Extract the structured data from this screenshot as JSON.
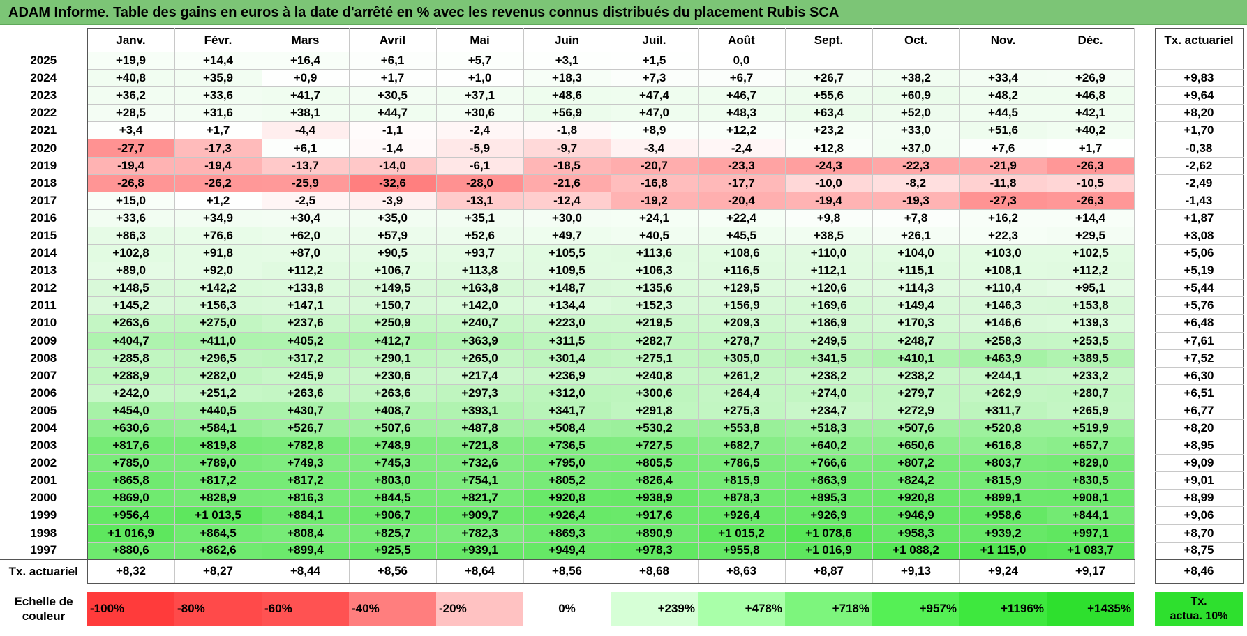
{
  "title": "ADAM Informe. Table des gains en euros à la date d'arrêté en % avec les revenus connus distribués du placement Rubis SCA",
  "chart_data": {
    "type": "table",
    "title": "ADAM Informe. Table des gains en euros à la date d'arrêté en % avec les revenus connus distribués du placement Rubis SCA",
    "columns": [
      "Janv.",
      "Févr.",
      "Mars",
      "Avril",
      "Mai",
      "Juin",
      "Juil.",
      "Août",
      "Sept.",
      "Oct.",
      "Nov.",
      "Déc."
    ],
    "tx_header": "Tx. actuariel",
    "rows": [
      {
        "year": "2025",
        "values": [
          "+19,9",
          "+14,4",
          "+16,4",
          "+6,1",
          "+5,7",
          "+3,1",
          "+1,5",
          "0,0",
          "",
          "",
          "",
          ""
        ],
        "nums": [
          19.9,
          14.4,
          16.4,
          6.1,
          5.7,
          3.1,
          1.5,
          0,
          null,
          null,
          null,
          null
        ],
        "tx": "",
        "txnum": null
      },
      {
        "year": "2024",
        "values": [
          "+40,8",
          "+35,9",
          "+0,9",
          "+1,7",
          "+1,0",
          "+18,3",
          "+7,3",
          "+6,7",
          "+26,7",
          "+38,2",
          "+33,4",
          "+26,9"
        ],
        "nums": [
          40.8,
          35.9,
          0.9,
          1.7,
          1.0,
          18.3,
          7.3,
          6.7,
          26.7,
          38.2,
          33.4,
          26.9
        ],
        "tx": "+9,83",
        "txnum": 9.83
      },
      {
        "year": "2023",
        "values": [
          "+36,2",
          "+33,6",
          "+41,7",
          "+30,5",
          "+37,1",
          "+48,6",
          "+47,4",
          "+46,7",
          "+55,6",
          "+60,9",
          "+48,2",
          "+46,8"
        ],
        "nums": [
          36.2,
          33.6,
          41.7,
          30.5,
          37.1,
          48.6,
          47.4,
          46.7,
          55.6,
          60.9,
          48.2,
          46.8
        ],
        "tx": "+9,64",
        "txnum": 9.64
      },
      {
        "year": "2022",
        "values": [
          "+28,5",
          "+31,6",
          "+38,1",
          "+44,7",
          "+30,6",
          "+56,9",
          "+47,0",
          "+48,3",
          "+63,4",
          "+52,0",
          "+44,5",
          "+42,1"
        ],
        "nums": [
          28.5,
          31.6,
          38.1,
          44.7,
          30.6,
          56.9,
          47.0,
          48.3,
          63.4,
          52.0,
          44.5,
          42.1
        ],
        "tx": "+8,20",
        "txnum": 8.2
      },
      {
        "year": "2021",
        "values": [
          "+3,4",
          "+1,7",
          "-4,4",
          "-1,1",
          "-2,4",
          "-1,8",
          "+8,9",
          "+12,2",
          "+23,2",
          "+33,0",
          "+51,6",
          "+40,2"
        ],
        "nums": [
          3.4,
          1.7,
          -4.4,
          -1.1,
          -2.4,
          -1.8,
          8.9,
          12.2,
          23.2,
          33.0,
          51.6,
          40.2
        ],
        "tx": "+1,70",
        "txnum": 1.7
      },
      {
        "year": "2020",
        "values": [
          "-27,7",
          "-17,3",
          "+6,1",
          "-1,4",
          "-5,9",
          "-9,7",
          "-3,4",
          "-2,4",
          "+12,8",
          "+37,0",
          "+7,6",
          "+1,7"
        ],
        "nums": [
          -27.7,
          -17.3,
          6.1,
          -1.4,
          -5.9,
          -9.7,
          -3.4,
          -2.4,
          12.8,
          37.0,
          7.6,
          1.7
        ],
        "tx": "-0,38",
        "txnum": -0.38
      },
      {
        "year": "2019",
        "values": [
          "-19,4",
          "-19,4",
          "-13,7",
          "-14,0",
          "-6,1",
          "-18,5",
          "-20,7",
          "-23,3",
          "-24,3",
          "-22,3",
          "-21,9",
          "-26,3"
        ],
        "nums": [
          -19.4,
          -19.4,
          -13.7,
          -14.0,
          -6.1,
          -18.5,
          -20.7,
          -23.3,
          -24.3,
          -22.3,
          -21.9,
          -26.3
        ],
        "tx": "-2,62",
        "txnum": -2.62
      },
      {
        "year": "2018",
        "values": [
          "-26,8",
          "-26,2",
          "-25,9",
          "-32,6",
          "-28,0",
          "-21,6",
          "-16,8",
          "-17,7",
          "-10,0",
          "-8,2",
          "-11,8",
          "-10,5"
        ],
        "nums": [
          -26.8,
          -26.2,
          -25.9,
          -32.6,
          -28.0,
          -21.6,
          -16.8,
          -17.7,
          -10.0,
          -8.2,
          -11.8,
          -10.5
        ],
        "tx": "-2,49",
        "txnum": -2.49
      },
      {
        "year": "2017",
        "values": [
          "+15,0",
          "+1,2",
          "-2,5",
          "-3,9",
          "-13,1",
          "-12,4",
          "-19,2",
          "-20,4",
          "-19,4",
          "-19,3",
          "-27,3",
          "-26,3"
        ],
        "nums": [
          15.0,
          1.2,
          -2.5,
          -3.9,
          -13.1,
          -12.4,
          -19.2,
          -20.4,
          -19.4,
          -19.3,
          -27.3,
          -26.3
        ],
        "tx": "-1,43",
        "txnum": -1.43
      },
      {
        "year": "2016",
        "values": [
          "+33,6",
          "+34,9",
          "+30,4",
          "+35,0",
          "+35,1",
          "+30,0",
          "+24,1",
          "+22,4",
          "+9,8",
          "+7,8",
          "+16,2",
          "+14,4"
        ],
        "nums": [
          33.6,
          34.9,
          30.4,
          35.0,
          35.1,
          30.0,
          24.1,
          22.4,
          9.8,
          7.8,
          16.2,
          14.4
        ],
        "tx": "+1,87",
        "txnum": 1.87
      },
      {
        "year": "2015",
        "values": [
          "+86,3",
          "+76,6",
          "+62,0",
          "+57,9",
          "+52,6",
          "+49,7",
          "+40,5",
          "+45,5",
          "+38,5",
          "+26,1",
          "+22,3",
          "+29,5"
        ],
        "nums": [
          86.3,
          76.6,
          62.0,
          57.9,
          52.6,
          49.7,
          40.5,
          45.5,
          38.5,
          26.1,
          22.3,
          29.5
        ],
        "tx": "+3,08",
        "txnum": 3.08
      },
      {
        "year": "2014",
        "values": [
          "+102,8",
          "+91,8",
          "+87,0",
          "+90,5",
          "+93,7",
          "+105,5",
          "+113,6",
          "+108,6",
          "+110,0",
          "+104,0",
          "+103,0",
          "+102,5"
        ],
        "nums": [
          102.8,
          91.8,
          87.0,
          90.5,
          93.7,
          105.5,
          113.6,
          108.6,
          110.0,
          104.0,
          103.0,
          102.5
        ],
        "tx": "+5,06",
        "txnum": 5.06
      },
      {
        "year": "2013",
        "values": [
          "+89,0",
          "+92,0",
          "+112,2",
          "+106,7",
          "+113,8",
          "+109,5",
          "+106,3",
          "+116,5",
          "+112,1",
          "+115,1",
          "+108,1",
          "+112,2"
        ],
        "nums": [
          89.0,
          92.0,
          112.2,
          106.7,
          113.8,
          109.5,
          106.3,
          116.5,
          112.1,
          115.1,
          108.1,
          112.2
        ],
        "tx": "+5,19",
        "txnum": 5.19
      },
      {
        "year": "2012",
        "values": [
          "+148,5",
          "+142,2",
          "+133,8",
          "+149,5",
          "+163,8",
          "+148,7",
          "+135,6",
          "+129,5",
          "+120,6",
          "+114,3",
          "+110,4",
          "+95,1"
        ],
        "nums": [
          148.5,
          142.2,
          133.8,
          149.5,
          163.8,
          148.7,
          135.6,
          129.5,
          120.6,
          114.3,
          110.4,
          95.1
        ],
        "tx": "+5,44",
        "txnum": 5.44
      },
      {
        "year": "2011",
        "values": [
          "+145,2",
          "+156,3",
          "+147,1",
          "+150,7",
          "+142,0",
          "+134,4",
          "+152,3",
          "+156,9",
          "+169,6",
          "+149,4",
          "+146,3",
          "+153,8"
        ],
        "nums": [
          145.2,
          156.3,
          147.1,
          150.7,
          142.0,
          134.4,
          152.3,
          156.9,
          169.6,
          149.4,
          146.3,
          153.8
        ],
        "tx": "+5,76",
        "txnum": 5.76
      },
      {
        "year": "2010",
        "values": [
          "+263,6",
          "+275,0",
          "+237,6",
          "+250,9",
          "+240,7",
          "+223,0",
          "+219,5",
          "+209,3",
          "+186,9",
          "+170,3",
          "+146,6",
          "+139,3"
        ],
        "nums": [
          263.6,
          275.0,
          237.6,
          250.9,
          240.7,
          223.0,
          219.5,
          209.3,
          186.9,
          170.3,
          146.6,
          139.3
        ],
        "tx": "+6,48",
        "txnum": 6.48
      },
      {
        "year": "2009",
        "values": [
          "+404,7",
          "+411,0",
          "+405,2",
          "+412,7",
          "+363,9",
          "+311,5",
          "+282,7",
          "+278,7",
          "+249,5",
          "+248,7",
          "+258,3",
          "+253,5"
        ],
        "nums": [
          404.7,
          411.0,
          405.2,
          412.7,
          363.9,
          311.5,
          282.7,
          278.7,
          249.5,
          248.7,
          258.3,
          253.5
        ],
        "tx": "+7,61",
        "txnum": 7.61
      },
      {
        "year": "2008",
        "values": [
          "+285,8",
          "+296,5",
          "+317,2",
          "+290,1",
          "+265,0",
          "+301,4",
          "+275,1",
          "+305,0",
          "+341,5",
          "+410,1",
          "+463,9",
          "+389,5"
        ],
        "nums": [
          285.8,
          296.5,
          317.2,
          290.1,
          265.0,
          301.4,
          275.1,
          305.0,
          341.5,
          410.1,
          463.9,
          389.5
        ],
        "tx": "+7,52",
        "txnum": 7.52
      },
      {
        "year": "2007",
        "values": [
          "+288,9",
          "+282,0",
          "+245,9",
          "+230,6",
          "+217,4",
          "+236,9",
          "+240,8",
          "+261,2",
          "+238,2",
          "+238,2",
          "+244,1",
          "+233,2"
        ],
        "nums": [
          288.9,
          282.0,
          245.9,
          230.6,
          217.4,
          236.9,
          240.8,
          261.2,
          238.2,
          238.2,
          244.1,
          233.2
        ],
        "tx": "+6,30",
        "txnum": 6.3
      },
      {
        "year": "2006",
        "values": [
          "+242,0",
          "+251,2",
          "+263,6",
          "+263,6",
          "+297,3",
          "+312,0",
          "+300,6",
          "+264,4",
          "+274,0",
          "+279,7",
          "+262,9",
          "+280,7"
        ],
        "nums": [
          242.0,
          251.2,
          263.6,
          263.6,
          297.3,
          312.0,
          300.6,
          264.4,
          274.0,
          279.7,
          262.9,
          280.7
        ],
        "tx": "+6,51",
        "txnum": 6.51
      },
      {
        "year": "2005",
        "values": [
          "+454,0",
          "+440,5",
          "+430,7",
          "+408,7",
          "+393,1",
          "+341,7",
          "+291,8",
          "+275,3",
          "+234,7",
          "+272,9",
          "+311,7",
          "+265,9"
        ],
        "nums": [
          454.0,
          440.5,
          430.7,
          408.7,
          393.1,
          341.7,
          291.8,
          275.3,
          234.7,
          272.9,
          311.7,
          265.9
        ],
        "tx": "+6,77",
        "txnum": 6.77
      },
      {
        "year": "2004",
        "values": [
          "+630,6",
          "+584,1",
          "+526,7",
          "+507,6",
          "+487,8",
          "+508,4",
          "+530,2",
          "+553,8",
          "+518,3",
          "+507,6",
          "+520,8",
          "+519,9"
        ],
        "nums": [
          630.6,
          584.1,
          526.7,
          507.6,
          487.8,
          508.4,
          530.2,
          553.8,
          518.3,
          507.6,
          520.8,
          519.9
        ],
        "tx": "+8,20",
        "txnum": 8.2
      },
      {
        "year": "2003",
        "values": [
          "+817,6",
          "+819,8",
          "+782,8",
          "+748,9",
          "+721,8",
          "+736,5",
          "+727,5",
          "+682,7",
          "+640,2",
          "+650,6",
          "+616,8",
          "+657,7"
        ],
        "nums": [
          817.6,
          819.8,
          782.8,
          748.9,
          721.8,
          736.5,
          727.5,
          682.7,
          640.2,
          650.6,
          616.8,
          657.7
        ],
        "tx": "+8,95",
        "txnum": 8.95
      },
      {
        "year": "2002",
        "values": [
          "+785,0",
          "+789,0",
          "+749,3",
          "+745,3",
          "+732,6",
          "+795,0",
          "+805,5",
          "+786,5",
          "+766,6",
          "+807,2",
          "+803,7",
          "+829,0"
        ],
        "nums": [
          785.0,
          789.0,
          749.3,
          745.3,
          732.6,
          795.0,
          805.5,
          786.5,
          766.6,
          807.2,
          803.7,
          829.0
        ],
        "tx": "+9,09",
        "txnum": 9.09
      },
      {
        "year": "2001",
        "values": [
          "+865,8",
          "+817,2",
          "+817,2",
          "+803,0",
          "+754,1",
          "+805,2",
          "+826,4",
          "+815,9",
          "+863,9",
          "+824,2",
          "+815,9",
          "+830,5"
        ],
        "nums": [
          865.8,
          817.2,
          817.2,
          803.0,
          754.1,
          805.2,
          826.4,
          815.9,
          863.9,
          824.2,
          815.9,
          830.5
        ],
        "tx": "+9,01",
        "txnum": 9.01
      },
      {
        "year": "2000",
        "values": [
          "+869,0",
          "+828,9",
          "+816,3",
          "+844,5",
          "+821,7",
          "+920,8",
          "+938,9",
          "+878,3",
          "+895,3",
          "+920,8",
          "+899,1",
          "+908,1"
        ],
        "nums": [
          869.0,
          828.9,
          816.3,
          844.5,
          821.7,
          920.8,
          938.9,
          878.3,
          895.3,
          920.8,
          899.1,
          908.1
        ],
        "tx": "+8,99",
        "txnum": 8.99
      },
      {
        "year": "1999",
        "values": [
          "+956,4",
          "+1 013,5",
          "+884,1",
          "+906,7",
          "+909,7",
          "+926,4",
          "+917,6",
          "+926,4",
          "+926,9",
          "+946,9",
          "+958,6",
          "+844,1"
        ],
        "nums": [
          956.4,
          1013.5,
          884.1,
          906.7,
          909.7,
          926.4,
          917.6,
          926.4,
          926.9,
          946.9,
          958.6,
          844.1
        ],
        "tx": "+9,06",
        "txnum": 9.06
      },
      {
        "year": "1998",
        "values": [
          "+1 016,9",
          "+864,5",
          "+808,4",
          "+825,7",
          "+782,3",
          "+869,3",
          "+890,9",
          "+1 015,2",
          "+1 078,6",
          "+958,3",
          "+939,2",
          "+997,1"
        ],
        "nums": [
          1016.9,
          864.5,
          808.4,
          825.7,
          782.3,
          869.3,
          890.9,
          1015.2,
          1078.6,
          958.3,
          939.2,
          997.1
        ],
        "tx": "+8,70",
        "txnum": 8.7
      },
      {
        "year": "1997",
        "values": [
          "+880,6",
          "+862,6",
          "+899,4",
          "+925,5",
          "+939,1",
          "+949,4",
          "+978,3",
          "+955,8",
          "+1 016,9",
          "+1 088,2",
          "+1 115,0",
          "+1 083,7"
        ],
        "nums": [
          880.6,
          862.6,
          899.4,
          925.5,
          939.1,
          949.4,
          978.3,
          955.8,
          1016.9,
          1088.2,
          1115.0,
          1083.7
        ],
        "tx": "+8,75",
        "txnum": 8.75
      }
    ],
    "total_row": {
      "label": "Tx. actuariel",
      "values": [
        "+8,32",
        "+8,27",
        "+8,44",
        "+8,56",
        "+8,64",
        "+8,56",
        "+8,68",
        "+8,63",
        "+8,87",
        "+9,13",
        "+9,24",
        "+9,17"
      ],
      "tx": "+8,46"
    },
    "color_scale": {
      "label_line1": "Echelle de",
      "label_line2": "couleur",
      "entries": [
        {
          "label": "-100%",
          "color": "#ff3b3b",
          "kind": "neg"
        },
        {
          "label": "-80%",
          "color": "#ff4a4a",
          "kind": "neg"
        },
        {
          "label": "-60%",
          "color": "#ff5252",
          "kind": "neg"
        },
        {
          "label": "-40%",
          "color": "#ff7e7e",
          "kind": "neg"
        },
        {
          "label": "-20%",
          "color": "#ffc2c2",
          "kind": "neg"
        },
        {
          "label": "0%",
          "color": "#ffffff",
          "kind": "zero"
        },
        {
          "label": "+239%",
          "color": "#d6ffd6",
          "kind": "pos"
        },
        {
          "label": "+478%",
          "color": "#a9ffa9",
          "kind": "pos"
        },
        {
          "label": "+718%",
          "color": "#7df57d",
          "kind": "pos"
        },
        {
          "label": "+957%",
          "color": "#55f055",
          "kind": "pos"
        },
        {
          "label": "+1196%",
          "color": "#3ee83e",
          "kind": "pos"
        },
        {
          "label": "+1435%",
          "color": "#2ee02e",
          "kind": "pos"
        }
      ],
      "tx_line1": "Tx.",
      "tx_line2": "actua. 10%",
      "tx_color": "#2ee02e"
    }
  }
}
